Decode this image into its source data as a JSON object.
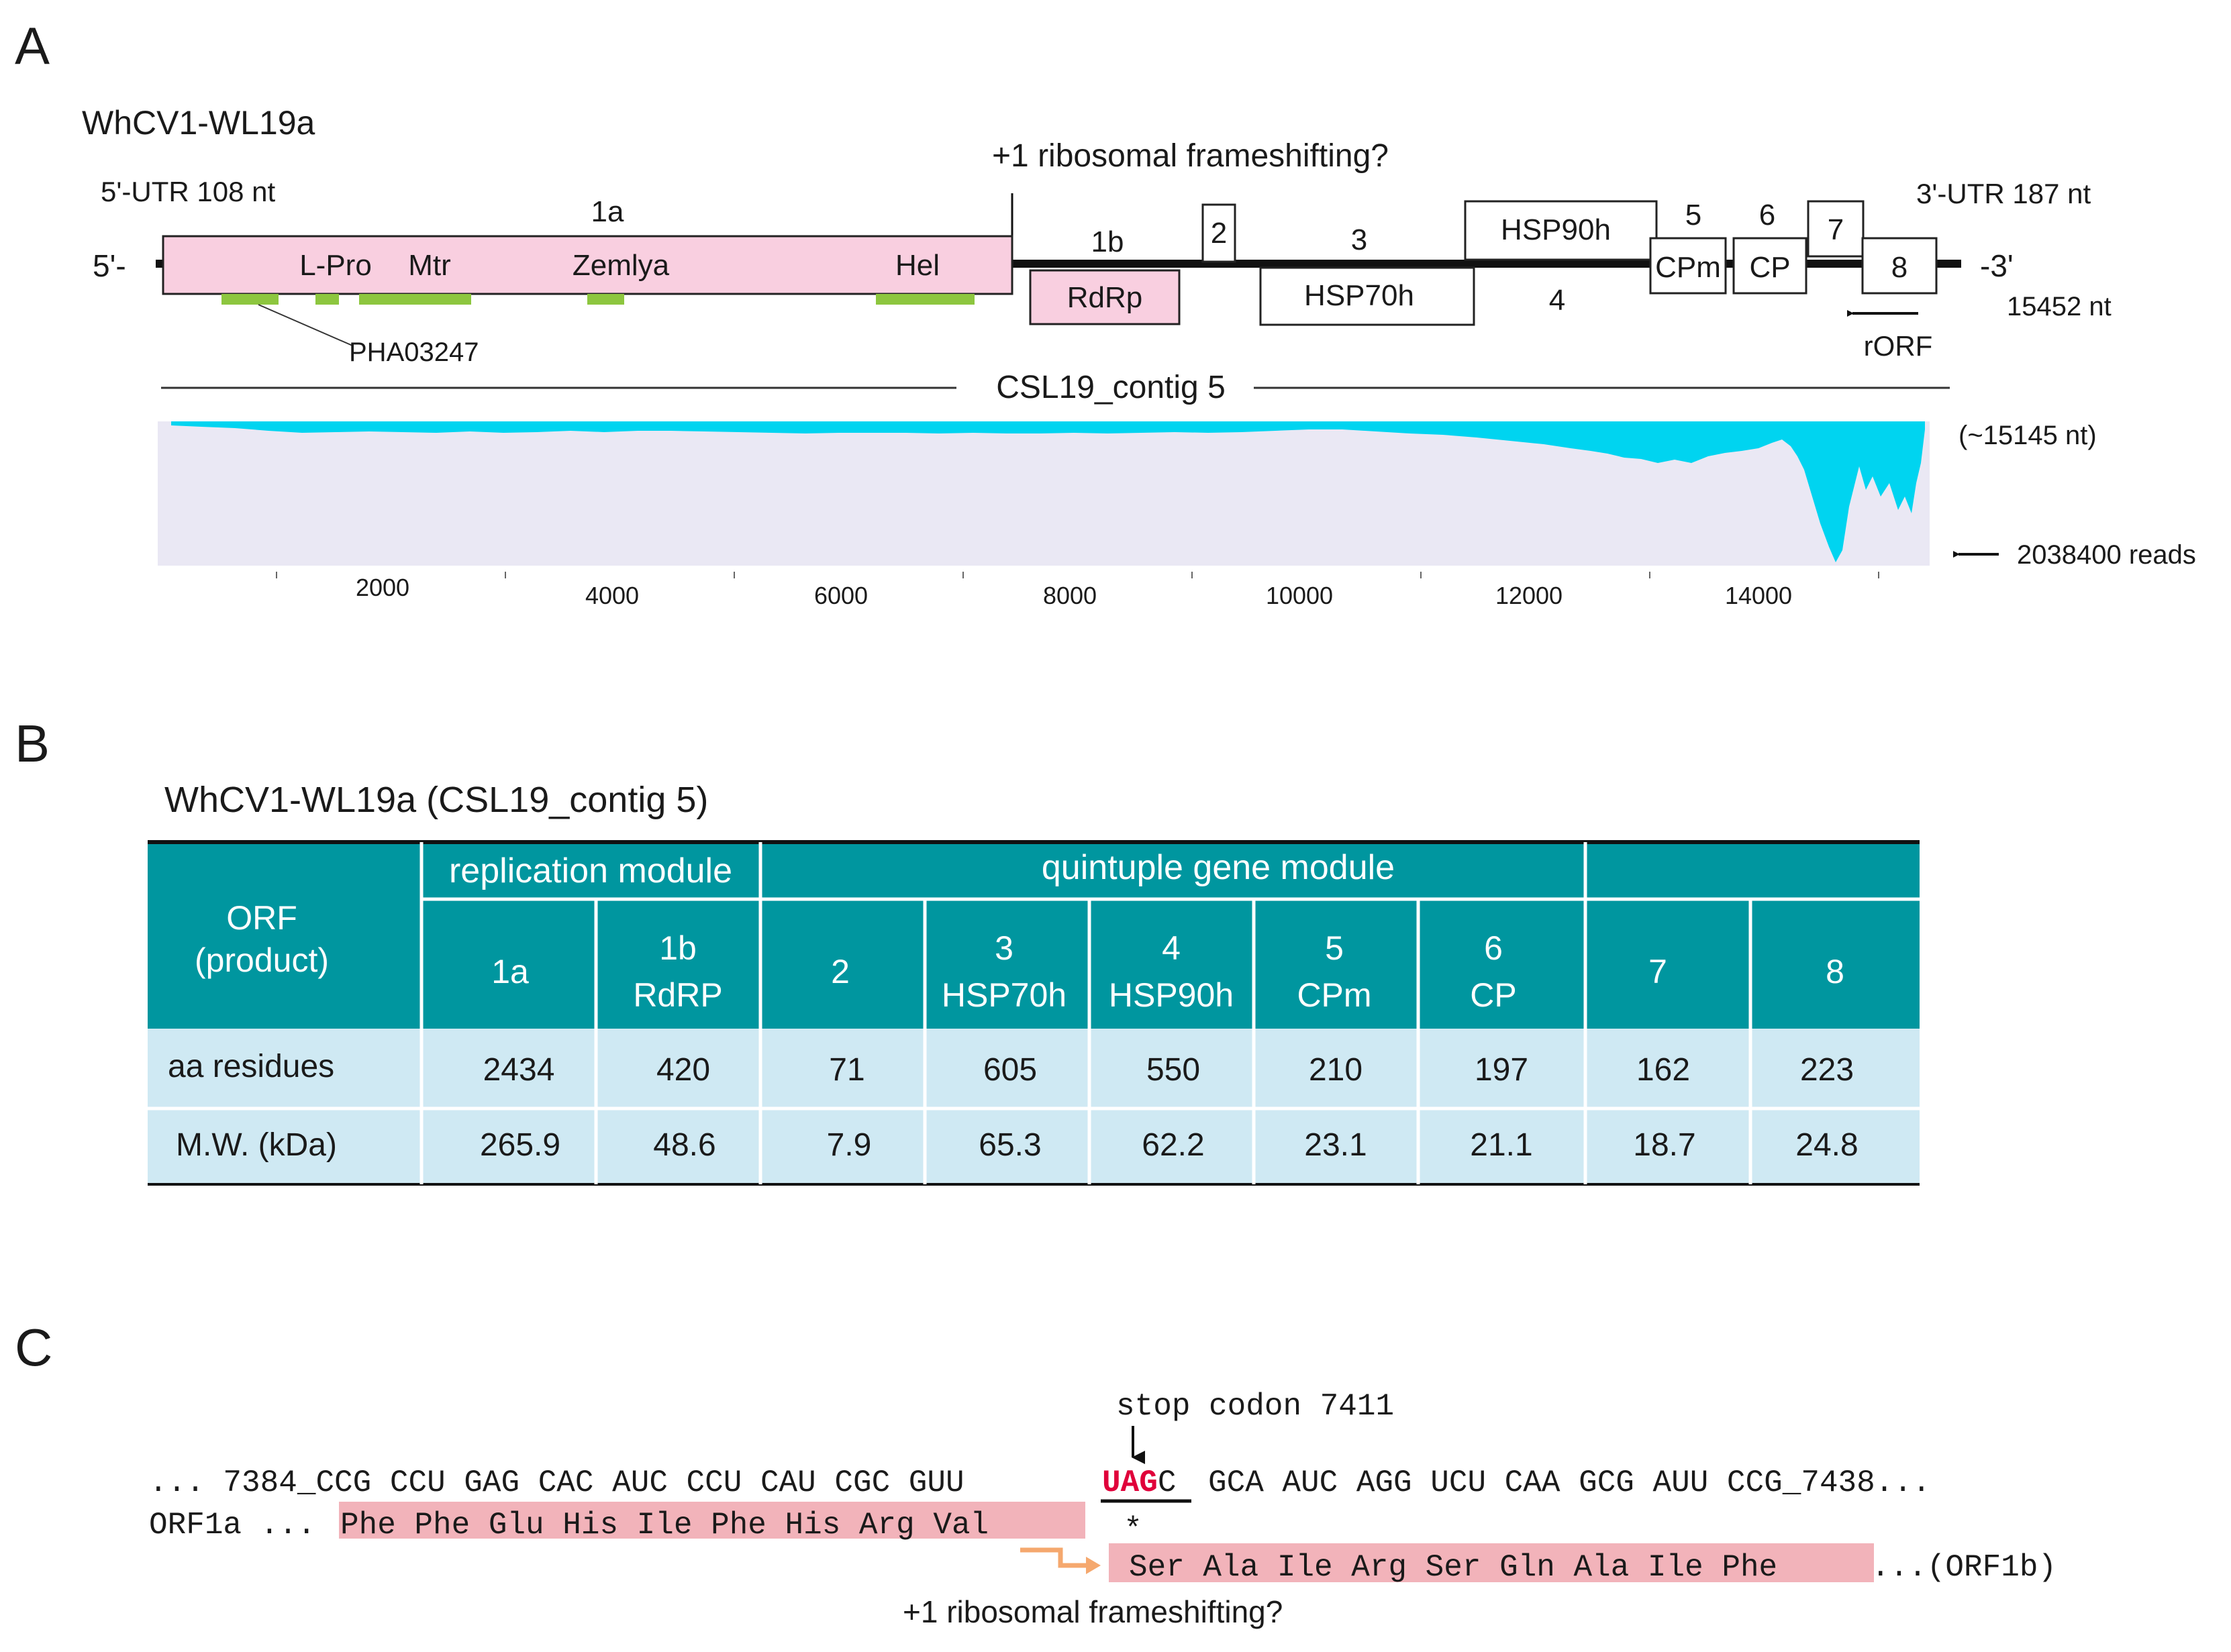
{
  "panelA": {
    "label": "A",
    "virus_name": "WhCV1-WL19a",
    "frameshift_label": "+1 ribosomal frameshifting?",
    "utr5": "5'-UTR 108 nt",
    "utr3": "3'-UTR 187 nt",
    "end5": "5'-",
    "end3": "-3'",
    "genome_length": "15452 nt",
    "orf1a_label": "1a",
    "orf1a_domains": [
      "L-Pro",
      "Mtr",
      "Zemlya",
      "Hel"
    ],
    "pha_label": "PHA03247",
    "orf1b_label": "1b",
    "rdrp_label": "RdRp",
    "orf2_label": "2",
    "orf3_number": "3",
    "orf3_product": "HSP70h",
    "orf4_number": "4",
    "orf4_product": "HSP90h",
    "orf5_number": "5",
    "orf5_product": "CPm",
    "orf6_number": "6",
    "orf6_product": "CP",
    "orf7_label": "7",
    "orf8_label": "8",
    "rorf_label": "rORF",
    "contig_label": "CSL19_contig 5",
    "coverage_length": "(~15145 nt)",
    "reads_label": "2038400 reads",
    "axis_ticks": [
      "2000",
      "4000",
      "6000",
      "8000",
      "10000",
      "12000",
      "14000"
    ],
    "colors": {
      "orf1a": "#f9cfe0",
      "domain": "#8dc63f",
      "coverage": "#00d4f0",
      "coverage_bg": "#eae8f4"
    }
  },
  "panelB": {
    "label": "B",
    "title": "WhCV1-WL19a (CSL19_contig 5)",
    "header_orf": [
      "ORF",
      "(product)"
    ],
    "group_replication": "replication module",
    "group_quintuple": "quintuple gene module",
    "columns": [
      {
        "num": "1a",
        "prod": ""
      },
      {
        "num": "1b",
        "prod": "RdRP"
      },
      {
        "num": "2",
        "prod": ""
      },
      {
        "num": "3",
        "prod": "HSP70h"
      },
      {
        "num": "4",
        "prod": "HSP90h"
      },
      {
        "num": "5",
        "prod": "CPm"
      },
      {
        "num": "6",
        "prod": "CP"
      },
      {
        "num": "7",
        "prod": ""
      },
      {
        "num": "8",
        "prod": ""
      }
    ],
    "rows": [
      {
        "label": "aa residues",
        "values": [
          "2434",
          "420",
          "71",
          "605",
          "550",
          "210",
          "197",
          "162",
          "223"
        ]
      },
      {
        "label": "M.W. (kDa)",
        "values": [
          "265.9",
          "48.6",
          "7.9",
          "65.3",
          "62.2",
          "23.1",
          "21.1",
          "18.7",
          "24.8"
        ]
      }
    ],
    "colors": {
      "header": "#00969f",
      "cell": "#cfe9f3"
    }
  },
  "panelC": {
    "label": "C",
    "stop_label": "stop codon 7411",
    "seq_prefix": "... 7384_CCG CCU GAG CAC AUC CCU CAU CGC GUU",
    "stop_codon": "UAG",
    "stop_after": "C",
    "seq_suffix": "GCA AUC AGG UCU CAA GCG AUU CCG_7438...",
    "orf1a_label": "ORF1a ...",
    "orf1a_aa": "Phe Phe Glu His Ile Phe His Arg Val",
    "stop_star": "*",
    "orf1b_aa": "Ser Ala Ile Arg Ser Gln Ala Ile Phe",
    "orf1b_tail": "...(ORF1b)",
    "frameshift_label": "+1 ribosomal frameshifting?",
    "colors": {
      "aa_highlight": "#f2b3ba",
      "stop": "#e0003a",
      "arrow": "#f5a86e"
    }
  }
}
